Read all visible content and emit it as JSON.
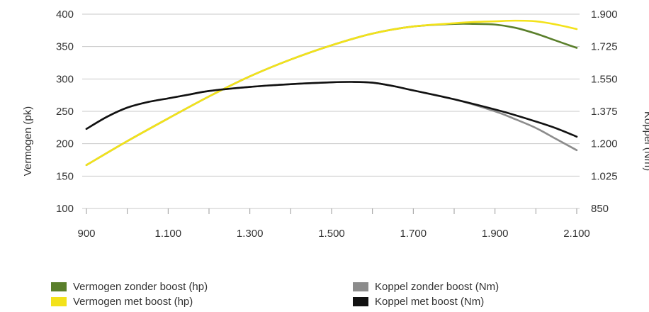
{
  "chart_data": {
    "type": "line",
    "title": "",
    "xlabel": "",
    "ylabel": "Vermogen (pk)",
    "y2label": "Koppel (Nm)",
    "xlim": [
      900,
      2100
    ],
    "ylim": [
      100,
      400
    ],
    "y2lim": [
      850,
      1900
    ],
    "x_ticks": [
      900,
      1000,
      1100,
      1200,
      1300,
      1400,
      1500,
      1600,
      1700,
      1800,
      1900,
      2000,
      2100
    ],
    "x_tick_labels": [
      "900",
      "1.100",
      "1.300",
      "1.500",
      "1.700",
      "1.900",
      "2.100"
    ],
    "x_tick_label_values": [
      900,
      1100,
      1300,
      1500,
      1700,
      1900,
      2100
    ],
    "y_tick_labels": [
      "100",
      "150",
      "200",
      "250",
      "300",
      "350",
      "400"
    ],
    "y_ticks": [
      100,
      150,
      200,
      250,
      300,
      350,
      400
    ],
    "y2_tick_labels": [
      "850",
      "1.025",
      "1.200",
      "1.375",
      "1.550",
      "1.725",
      "1.900"
    ],
    "y2_ticks": [
      850,
      1025,
      1200,
      1375,
      1550,
      1725,
      1900
    ],
    "grid": "horizontal",
    "legend_position": "bottom",
    "series": [
      {
        "name": "Vermogen zonder boost (hp)",
        "axis": "left",
        "color": "#5a7f2b",
        "x": [
          900,
          1000,
          1100,
          1200,
          1300,
          1400,
          1500,
          1600,
          1700,
          1800,
          1850,
          1900,
          1950,
          2000,
          2050,
          2100
        ],
        "values": [
          167,
          204,
          239,
          273,
          304,
          330,
          352,
          370,
          381,
          385,
          385,
          384,
          379,
          370,
          359,
          348
        ]
      },
      {
        "name": "Vermogen met boost (hp)",
        "axis": "left",
        "color": "#f3e21a",
        "x": [
          900,
          1000,
          1100,
          1200,
          1300,
          1400,
          1500,
          1600,
          1700,
          1800,
          1850,
          1900,
          1950,
          2000,
          2050,
          2100
        ],
        "values": [
          167,
          204,
          239,
          273,
          304,
          330,
          352,
          370,
          381,
          386,
          388,
          389,
          390,
          389,
          384,
          377
        ]
      },
      {
        "name": "Koppel zonder boost (Nm)",
        "axis": "right",
        "color": "#8c8c8c",
        "x": [
          900,
          950,
          1000,
          1050,
          1100,
          1150,
          1200,
          1300,
          1400,
          1500,
          1550,
          1600,
          1650,
          1700,
          1800,
          1900,
          1950,
          2000,
          2050,
          2100
        ],
        "values": [
          1280,
          1345,
          1395,
          1425,
          1445,
          1465,
          1485,
          1507,
          1522,
          1532,
          1534,
          1530,
          1512,
          1488,
          1440,
          1375,
          1332,
          1285,
          1225,
          1165
        ]
      },
      {
        "name": "Koppel met boost (Nm)",
        "axis": "right",
        "color": "#111111",
        "x": [
          900,
          950,
          1000,
          1050,
          1100,
          1150,
          1200,
          1300,
          1400,
          1500,
          1550,
          1600,
          1650,
          1700,
          1800,
          1900,
          1950,
          2000,
          2050,
          2100
        ],
        "values": [
          1280,
          1345,
          1395,
          1425,
          1445,
          1465,
          1485,
          1507,
          1522,
          1532,
          1534,
          1530,
          1512,
          1488,
          1440,
          1385,
          1354,
          1320,
          1283,
          1238
        ]
      }
    ]
  }
}
